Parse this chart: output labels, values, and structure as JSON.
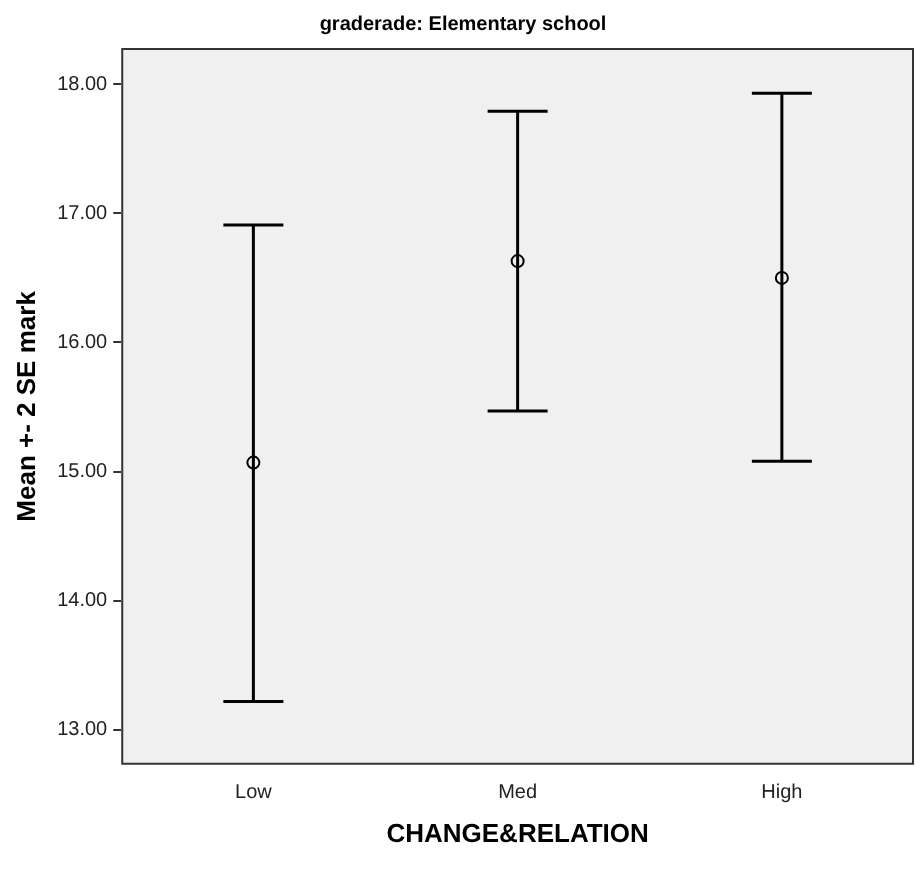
{
  "chart_data": {
    "type": "scatter",
    "title": "graderade: Elementary school",
    "xlabel": "CHANGE&RELATION",
    "ylabel": "Mean +- 2 SE mark",
    "categories": [
      "Low",
      "Med",
      "High"
    ],
    "values": [
      15.07,
      16.63,
      16.5
    ],
    "errors": [
      [
        13.22,
        16.91
      ],
      [
        15.47,
        17.79
      ],
      [
        15.08,
        17.93
      ]
    ],
    "color": "#000000",
    "marker": "circle",
    "ylim": [
      12.73,
      18.28
    ],
    "yticks": [
      {
        "value": 13,
        "label": "13.00"
      },
      {
        "value": 14,
        "label": "14.00"
      },
      {
        "value": 15,
        "label": "15.00"
      },
      {
        "value": 16,
        "label": "16.00"
      },
      {
        "value": 17,
        "label": "17.00"
      },
      {
        "value": 18,
        "label": "18.00"
      }
    ],
    "grid": false,
    "legend": false
  }
}
